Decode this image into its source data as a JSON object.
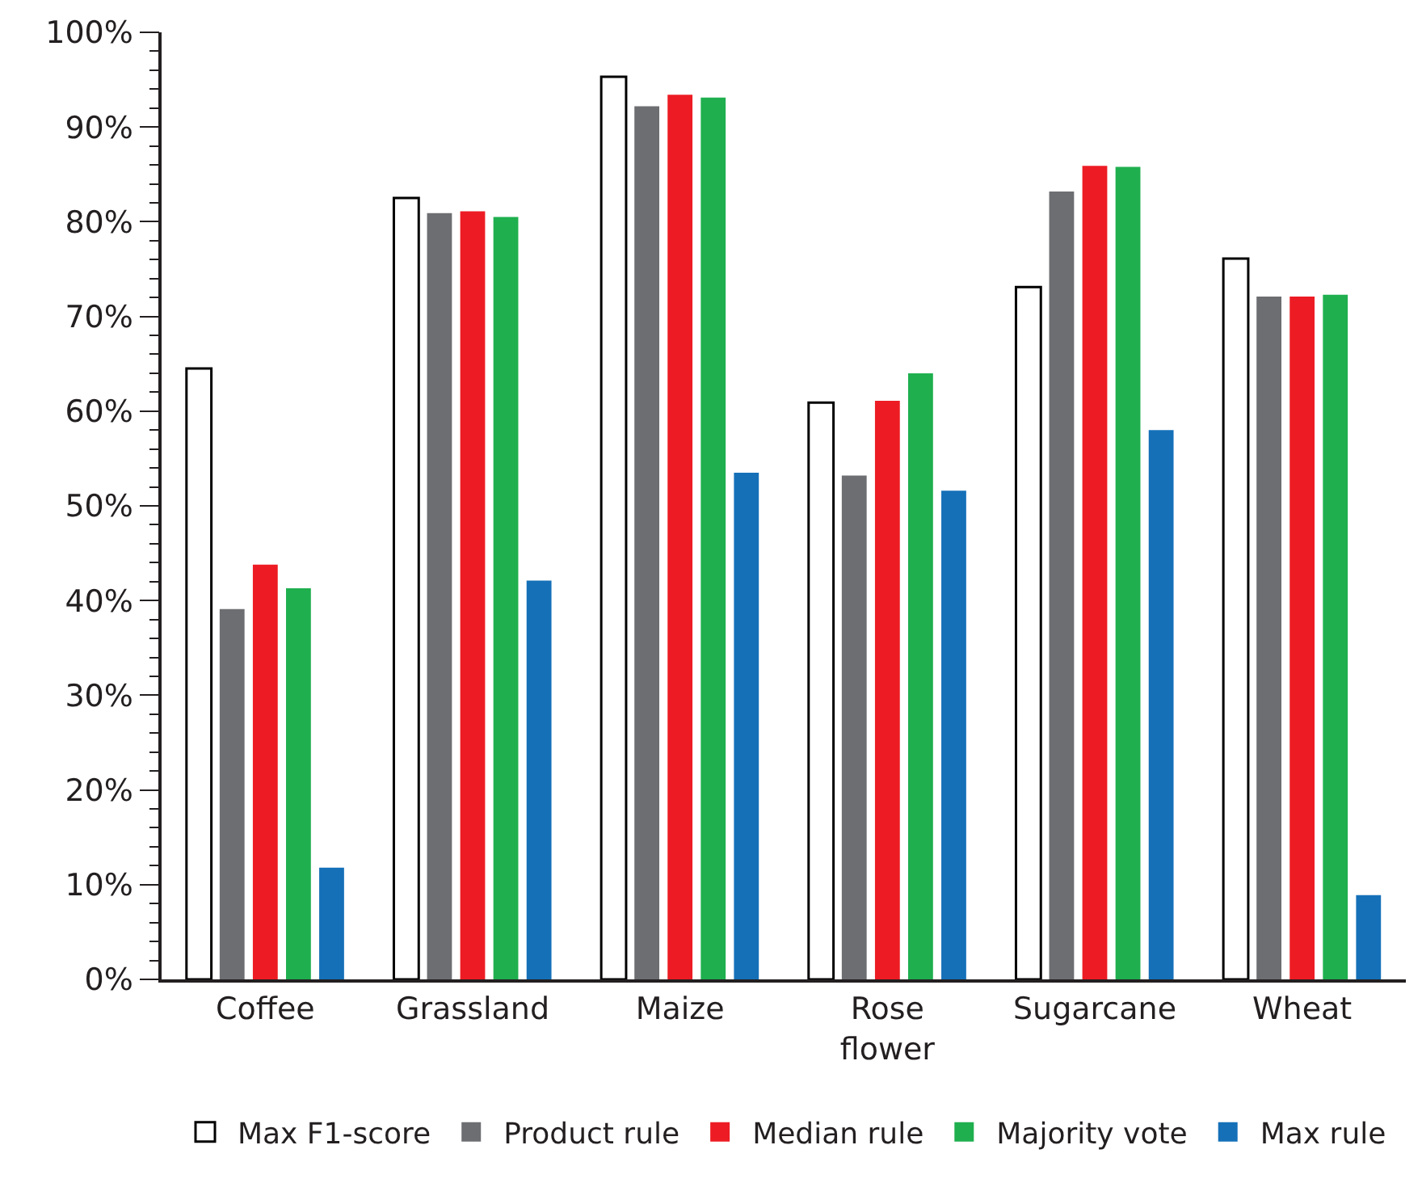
{
  "chart_data": {
    "type": "bar",
    "categories": [
      "Coffee",
      "Grassland",
      "Maize",
      "Rose flower",
      "Sugarcane",
      "Wheat"
    ],
    "series": [
      {
        "name": "Max F1-score",
        "color": "#ffffff",
        "values": [
          64.5,
          82.5,
          95.3,
          60.9,
          73.1,
          76.1
        ]
      },
      {
        "name": "Product rule",
        "color": "#6d6e71",
        "values": [
          39.1,
          80.9,
          92.2,
          53.2,
          83.2,
          72.1
        ]
      },
      {
        "name": "Median rule",
        "color": "#ed1c24",
        "values": [
          43.8,
          81.1,
          93.4,
          61.1,
          85.9,
          72.1
        ]
      },
      {
        "name": "Majority vote",
        "color": "#1faf4f",
        "values": [
          41.3,
          80.5,
          93.1,
          64.0,
          85.8,
          72.3
        ]
      },
      {
        "name": "Max rule",
        "color": "#1570b8",
        "values": [
          11.8,
          42.1,
          53.5,
          51.6,
          58.0,
          8.9
        ]
      }
    ],
    "ylim": [
      0,
      100
    ],
    "yticks": [
      {
        "value": 0,
        "label": "0%"
      },
      {
        "value": 10,
        "label": "10%"
      },
      {
        "value": 20,
        "label": "20%"
      },
      {
        "value": 30,
        "label": "30%"
      },
      {
        "value": 40,
        "label": "40%"
      },
      {
        "value": 50,
        "label": "50%"
      },
      {
        "value": 60,
        "label": "60%"
      },
      {
        "value": 70,
        "label": "70%"
      },
      {
        "value": 80,
        "label": "80%"
      },
      {
        "value": 90,
        "label": "90%"
      },
      {
        "value": 100,
        "label": "100%"
      }
    ],
    "grid": false,
    "legend": "bottom"
  }
}
